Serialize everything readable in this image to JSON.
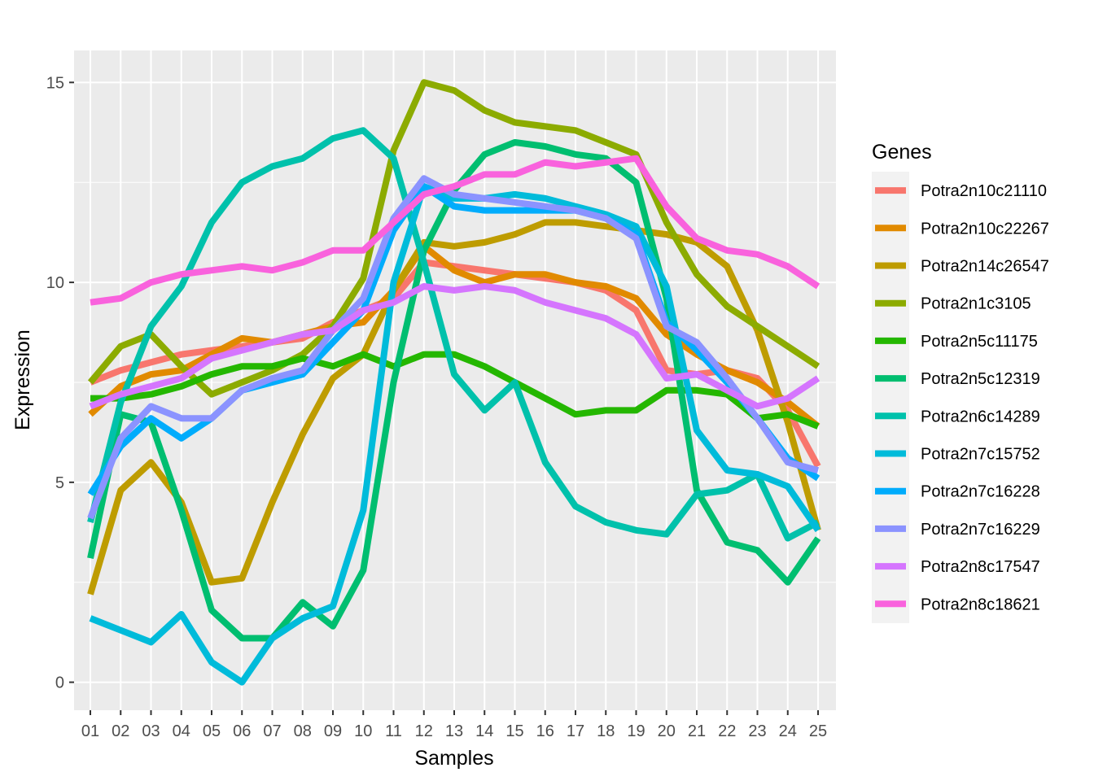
{
  "chart_data": {
    "type": "line",
    "xlabel": "Samples",
    "ylabel": "Expression",
    "ylim": [
      -0.7,
      15.8
    ],
    "yticks": [
      0,
      5,
      10,
      15
    ],
    "grid": true,
    "legend_title": "Genes",
    "legend_position": "right",
    "categories": [
      "01",
      "02",
      "03",
      "04",
      "05",
      "06",
      "07",
      "08",
      "09",
      "10",
      "11",
      "12",
      "13",
      "14",
      "15",
      "16",
      "17",
      "18",
      "19",
      "20",
      "21",
      "22",
      "23",
      "24",
      "25"
    ],
    "series": [
      {
        "name": "Potra2n10c21110",
        "color": "#F8766D",
        "values": [
          7.5,
          7.8,
          8.0,
          8.2,
          8.3,
          8.4,
          8.5,
          8.6,
          9.0,
          9.3,
          9.6,
          10.5,
          10.4,
          10.3,
          10.2,
          10.1,
          10.0,
          9.8,
          9.3,
          7.8,
          7.7,
          7.8,
          7.6,
          6.8,
          5.4
        ]
      },
      {
        "name": "Potra2n10c22267",
        "color": "#E18A00",
        "values": [
          6.7,
          7.4,
          7.7,
          7.8,
          8.2,
          8.6,
          8.5,
          8.7,
          8.9,
          9.0,
          9.8,
          10.9,
          10.3,
          10.0,
          10.2,
          10.2,
          10.0,
          9.9,
          9.6,
          8.7,
          8.2,
          7.8,
          7.5,
          7.0,
          6.4
        ]
      },
      {
        "name": "Potra2n14c26547",
        "color": "#BE9C00",
        "values": [
          2.2,
          4.8,
          5.5,
          4.5,
          2.5,
          2.6,
          4.5,
          6.2,
          7.6,
          8.2,
          9.8,
          11.0,
          10.9,
          11.0,
          11.2,
          11.5,
          11.5,
          11.4,
          11.3,
          11.2,
          11.0,
          10.4,
          8.8,
          6.5,
          3.8
        ]
      },
      {
        "name": "Potra2n1c3105",
        "color": "#8CAB00",
        "values": [
          7.5,
          8.4,
          8.7,
          7.9,
          7.2,
          7.5,
          7.8,
          8.2,
          8.9,
          10.1,
          13.3,
          15.0,
          14.8,
          14.3,
          14.0,
          13.9,
          13.8,
          13.5,
          13.2,
          11.5,
          10.2,
          9.4,
          8.9,
          8.4,
          7.9
        ]
      },
      {
        "name": "Potra2n5c11175",
        "color": "#24B700",
        "values": [
          7.1,
          7.1,
          7.2,
          7.4,
          7.7,
          7.9,
          7.9,
          8.1,
          7.9,
          8.2,
          7.9,
          8.2,
          8.2,
          7.9,
          7.5,
          7.1,
          6.7,
          6.8,
          6.8,
          7.3,
          7.3,
          7.2,
          6.6,
          6.7,
          6.4
        ]
      },
      {
        "name": "Potra2n5c12319",
        "color": "#00BE70",
        "values": [
          3.1,
          6.7,
          6.5,
          4.3,
          1.8,
          1.1,
          1.1,
          2.0,
          1.4,
          2.8,
          7.5,
          10.8,
          12.3,
          13.2,
          13.5,
          13.4,
          13.2,
          13.1,
          12.5,
          9.6,
          4.8,
          3.5,
          3.3,
          2.5,
          3.6
        ]
      },
      {
        "name": "Potra2n6c14289",
        "color": "#00C1AB",
        "values": [
          4.0,
          7.0,
          8.9,
          9.9,
          11.5,
          12.5,
          12.9,
          13.1,
          13.6,
          13.8,
          13.1,
          10.5,
          7.7,
          6.8,
          7.5,
          5.5,
          4.4,
          4.0,
          3.8,
          3.7,
          4.7,
          4.8,
          5.2,
          3.6,
          4.0
        ]
      },
      {
        "name": "Potra2n7c15752",
        "color": "#00BBDA",
        "values": [
          1.6,
          1.3,
          1.0,
          1.7,
          0.5,
          0.0,
          1.1,
          1.6,
          1.9,
          4.3,
          10.0,
          12.4,
          12.1,
          12.1,
          12.2,
          12.1,
          11.9,
          11.7,
          11.4,
          9.9,
          6.3,
          5.3,
          5.2,
          4.9,
          3.8
        ]
      },
      {
        "name": "Potra2n7c16228",
        "color": "#00ACFC",
        "values": [
          4.7,
          5.9,
          6.6,
          6.1,
          6.6,
          7.3,
          7.5,
          7.7,
          8.5,
          9.3,
          11.3,
          12.4,
          11.9,
          11.8,
          11.8,
          11.8,
          11.8,
          11.6,
          11.2,
          9.0,
          8.3,
          7.5,
          6.6,
          5.6,
          5.1
        ]
      },
      {
        "name": "Potra2n7c16229",
        "color": "#8B93FF",
        "values": [
          4.1,
          6.1,
          6.9,
          6.6,
          6.6,
          7.3,
          7.6,
          7.8,
          8.8,
          9.6,
          11.6,
          12.6,
          12.2,
          12.1,
          12.0,
          11.9,
          11.8,
          11.6,
          11.1,
          8.9,
          8.5,
          7.6,
          6.6,
          5.5,
          5.3
        ]
      },
      {
        "name": "Potra2n8c17547",
        "color": "#D575FE",
        "values": [
          6.9,
          7.2,
          7.4,
          7.6,
          8.1,
          8.3,
          8.5,
          8.7,
          8.8,
          9.3,
          9.5,
          9.9,
          9.8,
          9.9,
          9.8,
          9.5,
          9.3,
          9.1,
          8.7,
          7.6,
          7.7,
          7.3,
          6.9,
          7.1,
          7.6
        ]
      },
      {
        "name": "Potra2n8c18621",
        "color": "#F962DD",
        "values": [
          9.5,
          9.6,
          10.0,
          10.2,
          10.3,
          10.4,
          10.3,
          10.5,
          10.8,
          10.8,
          11.5,
          12.2,
          12.4,
          12.7,
          12.7,
          13.0,
          12.9,
          13.0,
          13.1,
          11.9,
          11.1,
          10.8,
          10.7,
          10.4,
          9.9
        ]
      }
    ]
  }
}
